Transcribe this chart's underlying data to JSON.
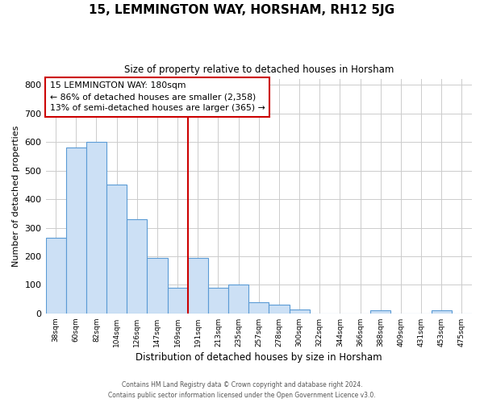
{
  "title": "15, LEMMINGTON WAY, HORSHAM, RH12 5JG",
  "subtitle": "Size of property relative to detached houses in Horsham",
  "xlabel": "Distribution of detached houses by size in Horsham",
  "ylabel": "Number of detached properties",
  "bar_labels": [
    "38sqm",
    "60sqm",
    "82sqm",
    "104sqm",
    "126sqm",
    "147sqm",
    "169sqm",
    "191sqm",
    "213sqm",
    "235sqm",
    "257sqm",
    "278sqm",
    "300sqm",
    "322sqm",
    "344sqm",
    "366sqm",
    "388sqm",
    "409sqm",
    "431sqm",
    "453sqm",
    "475sqm"
  ],
  "bar_heights": [
    265,
    580,
    600,
    450,
    330,
    195,
    90,
    195,
    90,
    100,
    38,
    30,
    15,
    0,
    0,
    0,
    10,
    0,
    0,
    10,
    0
  ],
  "bar_color": "#cce0f5",
  "bar_edge_color": "#5b9bd5",
  "annotation_line1": "15 LEMMINGTON WAY: 180sqm",
  "annotation_line2": "← 86% of detached houses are smaller (2,358)",
  "annotation_line3": "13% of semi-detached houses are larger (365) →",
  "annotation_box_color": "#ffffff",
  "annotation_box_edge": "#cc0000",
  "red_line_color": "#cc0000",
  "ylim": [
    0,
    820
  ],
  "yticks": [
    0,
    100,
    200,
    300,
    400,
    500,
    600,
    700,
    800
  ],
  "footer_line1": "Contains HM Land Registry data © Crown copyright and database right 2024.",
  "footer_line2": "Contains public sector information licensed under the Open Government Licence v3.0.",
  "bg_color": "#ffffff",
  "grid_color": "#cccccc"
}
